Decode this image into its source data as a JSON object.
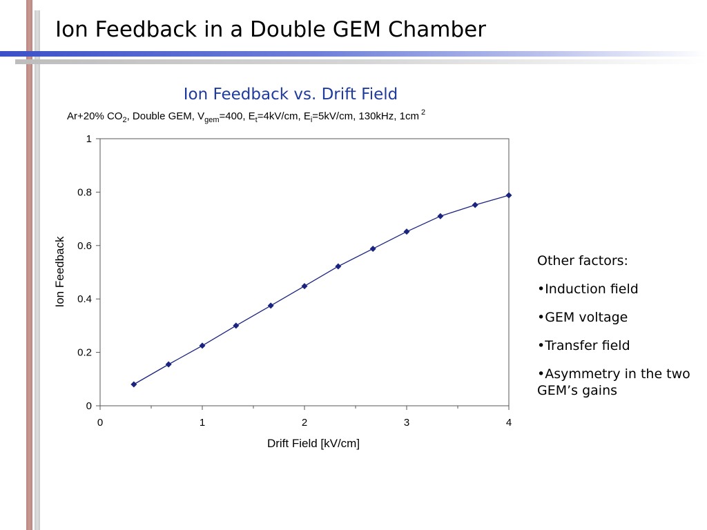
{
  "slide": {
    "title": "Ion Feedback in a Double GEM Chamber"
  },
  "colors": {
    "accent_blue": "#1f3b9c",
    "series": "#1a237e",
    "deco_red": "#b9857f",
    "deco_gray": "#c8c8c8",
    "deco_blue": "#3c50c8"
  },
  "chart_data": {
    "type": "line",
    "title": "Ion Feedback vs. Drift Field",
    "subtitle": {
      "p1": "Ar+20% CO",
      "p2": "2",
      "p3": ", Double GEM, V",
      "p4": "gem",
      "p5": "=400, E",
      "p6": "t",
      "p7": "=4kV/cm, E",
      "p8": "i",
      "p9": "=5kV/cm, 130kHz, 1cm",
      "p10": "2"
    },
    "xlabel": "Drift Field [kV/cm]",
    "ylabel": "Ion Feedback",
    "xlim": [
      0,
      4
    ],
    "ylim": [
      0,
      1
    ],
    "xticks": [
      "0",
      "1",
      "2",
      "3",
      "4"
    ],
    "yticks": [
      "0",
      "0.2",
      "0.4",
      "0.6",
      "0.8",
      "1"
    ],
    "grid": false,
    "legend": "none",
    "series": [
      {
        "x": [
          0.33,
          0.67,
          1.0,
          1.33,
          1.67,
          2.0,
          2.33,
          2.67,
          3.0,
          3.33,
          3.67,
          4.0
        ],
        "y": [
          0.08,
          0.155,
          0.225,
          0.3,
          0.375,
          0.448,
          0.522,
          0.588,
          0.652,
          0.71,
          0.752,
          0.788
        ]
      }
    ]
  },
  "notes": {
    "heading": "Other factors:",
    "items": [
      "•Induction field",
      "•GEM voltage",
      "•Transfer field",
      "•Asymmetry in the two GEM’s gains"
    ]
  }
}
